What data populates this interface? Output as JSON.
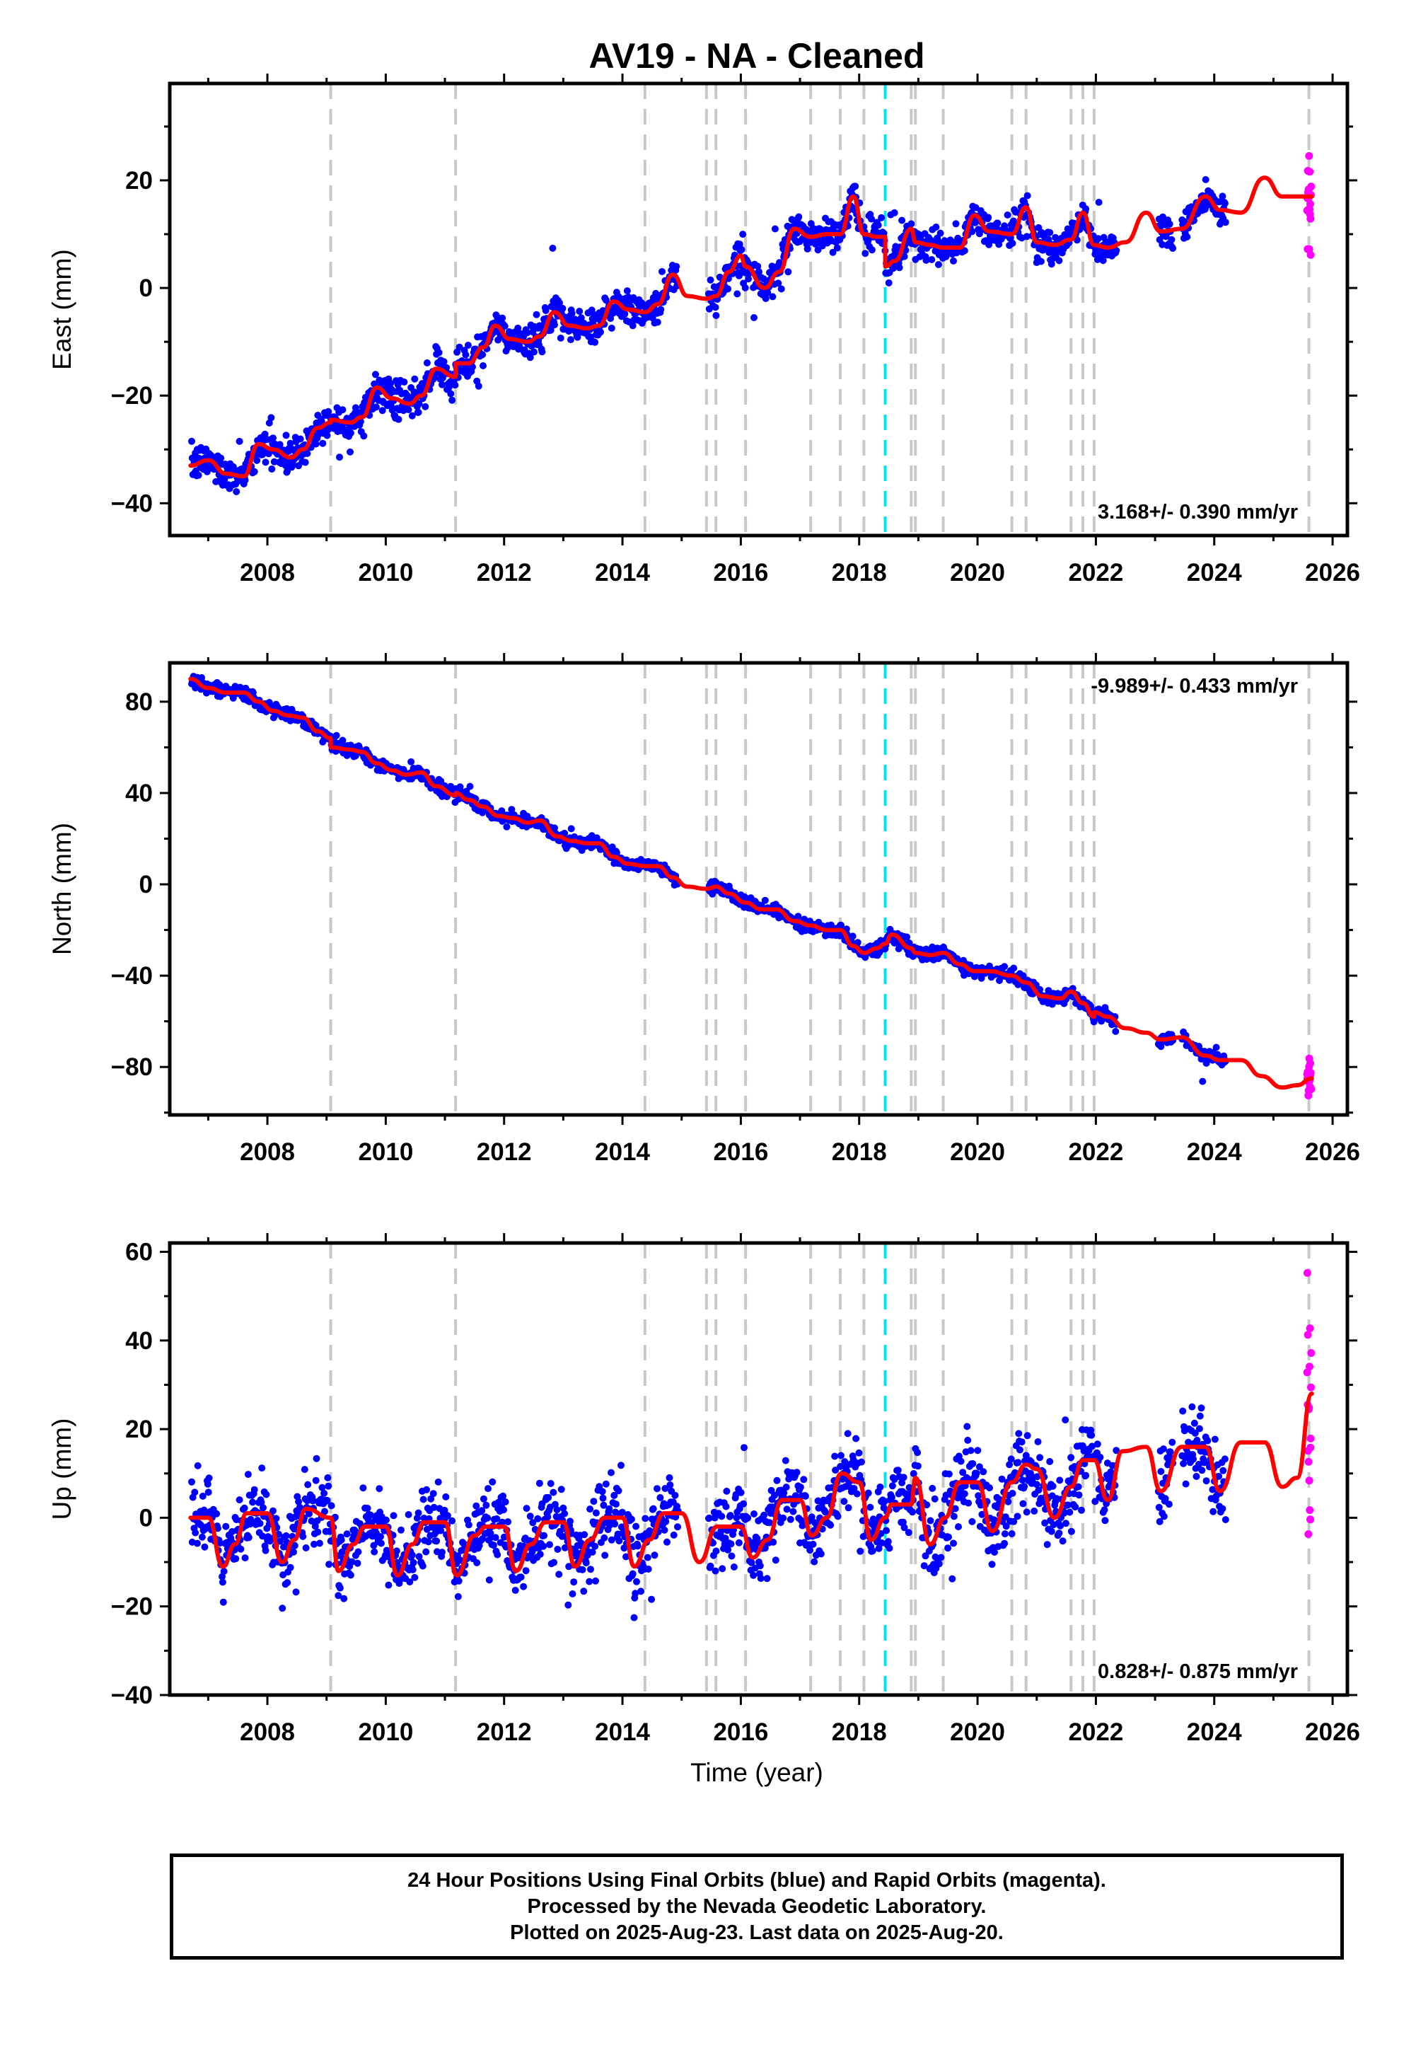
{
  "title": "AV19  - NA - Cleaned",
  "colors": {
    "final_orbits": "#0000ff",
    "rapid_orbits": "#ff00ff",
    "model": "#ff0000",
    "offsets": "#c8c8c8",
    "antenna_change": "#00e5ee"
  },
  "x_axis": {
    "label": "Time (year)",
    "range": [
      2006.35,
      2026.25
    ],
    "ticks": [
      "2008",
      "2010",
      "2012",
      "2014",
      "2016",
      "2018",
      "2020",
      "2022",
      "2024",
      "2026"
    ],
    "tick_values": [
      2008,
      2010,
      2012,
      2014,
      2016,
      2018,
      2020,
      2022,
      2024,
      2026
    ]
  },
  "offset_epochs": [
    2009.07,
    2011.18,
    2014.38,
    2015.42,
    2015.58,
    2016.08,
    2017.18,
    2017.68,
    2018.08,
    2018.88,
    2018.95,
    2019.42,
    2020.58,
    2020.82,
    2021.58,
    2021.78,
    2021.97,
    2025.6
  ],
  "antenna_epoch": 2018.44,
  "chart_data": [
    {
      "type": "scatter",
      "component": "East",
      "ylabel": "East (mm)",
      "ylim": [
        -46,
        38
      ],
      "yticks": [
        "20",
        "0",
        "−20",
        "−40"
      ],
      "ytick_values": [
        20,
        0,
        -20,
        -40
      ],
      "rate": "3.168+/- 0.390 mm/yr",
      "rate_position": "bottom-right",
      "model_series": [
        [
          2006.7,
          -33
        ],
        [
          2007.0,
          -32
        ],
        [
          2007.3,
          -34.5
        ],
        [
          2007.6,
          -35
        ],
        [
          2007.85,
          -29
        ],
        [
          2008.1,
          -30
        ],
        [
          2008.4,
          -31.5
        ],
        [
          2008.6,
          -30
        ],
        [
          2008.85,
          -26
        ],
        [
          2009.07,
          -25
        ],
        [
          2009.07,
          -24.5
        ],
        [
          2009.4,
          -25
        ],
        [
          2009.6,
          -24
        ],
        [
          2009.85,
          -18.5
        ],
        [
          2010.1,
          -20.5
        ],
        [
          2010.4,
          -21.5
        ],
        [
          2010.6,
          -20
        ],
        [
          2010.85,
          -15
        ],
        [
          2011.18,
          -16.5
        ],
        [
          2011.18,
          -14
        ],
        [
          2011.4,
          -14
        ],
        [
          2011.65,
          -11
        ],
        [
          2011.85,
          -7
        ],
        [
          2012.1,
          -9.5
        ],
        [
          2012.4,
          -10
        ],
        [
          2012.6,
          -9
        ],
        [
          2012.85,
          -4.5
        ],
        [
          2013.1,
          -7
        ],
        [
          2013.4,
          -7.5
        ],
        [
          2013.6,
          -7
        ],
        [
          2013.85,
          -2.5
        ],
        [
          2014.1,
          -4
        ],
        [
          2014.38,
          -4.5
        ],
        [
          2014.6,
          -3
        ],
        [
          2014.85,
          2.5
        ],
        [
          2015.1,
          -1.5
        ],
        [
          2015.42,
          -2
        ],
        [
          2015.58,
          -1.5
        ],
        [
          2015.8,
          3
        ],
        [
          2016.0,
          6
        ],
        [
          2016.08,
          4
        ],
        [
          2016.4,
          0
        ],
        [
          2016.65,
          3
        ],
        [
          2016.9,
          11
        ],
        [
          2017.18,
          9.5
        ],
        [
          2017.45,
          10
        ],
        [
          2017.68,
          10
        ],
        [
          2017.9,
          17
        ],
        [
          2018.08,
          10
        ],
        [
          2018.3,
          9.5
        ],
        [
          2018.44,
          9.5
        ],
        [
          2018.44,
          4
        ],
        [
          2018.6,
          5
        ],
        [
          2018.88,
          11
        ],
        [
          2018.95,
          8.5
        ],
        [
          2019.2,
          8
        ],
        [
          2019.42,
          7.5
        ],
        [
          2019.7,
          7.5
        ],
        [
          2019.95,
          13.5
        ],
        [
          2020.2,
          10.5
        ],
        [
          2020.58,
          10
        ],
        [
          2020.82,
          15
        ],
        [
          2021.0,
          8.5
        ],
        [
          2021.3,
          8
        ],
        [
          2021.58,
          9
        ],
        [
          2021.78,
          14
        ],
        [
          2021.97,
          8
        ],
        [
          2022.2,
          7.5
        ],
        [
          2022.5,
          8.5
        ],
        [
          2022.85,
          14
        ],
        [
          2023.1,
          10.5
        ],
        [
          2023.45,
          11
        ],
        [
          2023.85,
          17
        ],
        [
          2024.1,
          14.5
        ],
        [
          2024.45,
          14
        ],
        [
          2024.85,
          20.5
        ],
        [
          2025.15,
          17
        ],
        [
          2025.6,
          17
        ],
        [
          2025.65,
          17
        ]
      ]
    },
    {
      "type": "scatter",
      "component": "North",
      "ylabel": "North (mm)",
      "ylim": [
        -101,
        97
      ],
      "yticks": [
        "80",
        "40",
        "0",
        "−40",
        "−80"
      ],
      "ytick_values": [
        80,
        40,
        0,
        -40,
        -80
      ],
      "rate": "-9.989+/- 0.433 mm/yr",
      "rate_position": "top-right",
      "model_series": [
        [
          2006.7,
          90
        ],
        [
          2007.0,
          86
        ],
        [
          2007.3,
          84
        ],
        [
          2007.6,
          84
        ],
        [
          2007.85,
          80
        ],
        [
          2008.1,
          76
        ],
        [
          2008.35,
          74
        ],
        [
          2008.6,
          73
        ],
        [
          2008.85,
          67
        ],
        [
          2009.07,
          64
        ],
        [
          2009.07,
          60
        ],
        [
          2009.4,
          59
        ],
        [
          2009.6,
          58
        ],
        [
          2009.85,
          53
        ],
        [
          2010.1,
          50
        ],
        [
          2010.35,
          48
        ],
        [
          2010.6,
          49
        ],
        [
          2010.85,
          43
        ],
        [
          2011.18,
          39
        ],
        [
          2011.18,
          40
        ],
        [
          2011.4,
          37
        ],
        [
          2011.65,
          34
        ],
        [
          2011.9,
          30
        ],
        [
          2012.15,
          29
        ],
        [
          2012.4,
          27
        ],
        [
          2012.6,
          28
        ],
        [
          2012.9,
          21
        ],
        [
          2013.15,
          19
        ],
        [
          2013.4,
          18
        ],
        [
          2013.6,
          18
        ],
        [
          2013.85,
          12
        ],
        [
          2014.1,
          9
        ],
        [
          2014.38,
          8
        ],
        [
          2014.6,
          8
        ],
        [
          2014.85,
          3
        ],
        [
          2015.1,
          -1
        ],
        [
          2015.42,
          -2
        ],
        [
          2015.58,
          -1
        ],
        [
          2015.8,
          -4
        ],
        [
          2016.08,
          -8
        ],
        [
          2016.35,
          -11
        ],
        [
          2016.6,
          -11
        ],
        [
          2016.9,
          -16
        ],
        [
          2017.18,
          -18
        ],
        [
          2017.45,
          -20
        ],
        [
          2017.68,
          -20
        ],
        [
          2017.9,
          -27
        ],
        [
          2018.08,
          -30
        ],
        [
          2018.3,
          -28
        ],
        [
          2018.44,
          -26
        ],
        [
          2018.55,
          -22
        ],
        [
          2018.88,
          -28
        ],
        [
          2018.95,
          -30
        ],
        [
          2019.2,
          -31
        ],
        [
          2019.42,
          -30
        ],
        [
          2019.7,
          -35
        ],
        [
          2019.95,
          -38
        ],
        [
          2020.2,
          -38
        ],
        [
          2020.58,
          -40
        ],
        [
          2020.82,
          -43
        ],
        [
          2021.1,
          -49
        ],
        [
          2021.4,
          -50
        ],
        [
          2021.58,
          -47
        ],
        [
          2021.78,
          -52
        ],
        [
          2021.97,
          -58
        ],
        [
          2021.97,
          -56
        ],
        [
          2022.2,
          -58
        ],
        [
          2022.5,
          -63
        ],
        [
          2022.85,
          -65
        ],
        [
          2023.1,
          -68
        ],
        [
          2023.45,
          -67
        ],
        [
          2023.85,
          -75
        ],
        [
          2024.1,
          -77
        ],
        [
          2024.45,
          -77
        ],
        [
          2024.8,
          -84
        ],
        [
          2025.15,
          -89
        ],
        [
          2025.4,
          -88
        ],
        [
          2025.65,
          -85
        ]
      ]
    },
    {
      "type": "scatter",
      "component": "Up",
      "ylabel": "Up (mm)",
      "ylim": [
        -40,
        62
      ],
      "yticks": [
        "60",
        "40",
        "20",
        "0",
        "−20",
        "−40"
      ],
      "ytick_values": [
        60,
        40,
        20,
        0,
        -20,
        -40
      ],
      "rate": "0.828+/- 0.875 mm/yr",
      "rate_position": "bottom-right",
      "model_series": [
        [
          2006.7,
          0
        ],
        [
          2007.0,
          0
        ],
        [
          2007.25,
          -11
        ],
        [
          2007.45,
          -6
        ],
        [
          2007.65,
          1
        ],
        [
          2008.0,
          1
        ],
        [
          2008.25,
          -10
        ],
        [
          2008.45,
          -5
        ],
        [
          2008.65,
          2
        ],
        [
          2009.07,
          0
        ],
        [
          2009.2,
          -12
        ],
        [
          2009.45,
          -6
        ],
        [
          2009.65,
          -2
        ],
        [
          2010.0,
          -2
        ],
        [
          2010.2,
          -13
        ],
        [
          2010.45,
          -6
        ],
        [
          2010.65,
          -1
        ],
        [
          2011.0,
          -1
        ],
        [
          2011.2,
          -13
        ],
        [
          2011.5,
          -4
        ],
        [
          2011.7,
          -2
        ],
        [
          2012.0,
          -2
        ],
        [
          2012.2,
          -12
        ],
        [
          2012.45,
          -6
        ],
        [
          2012.7,
          -1
        ],
        [
          2013.0,
          -1
        ],
        [
          2013.2,
          -11
        ],
        [
          2013.45,
          -5
        ],
        [
          2013.7,
          0
        ],
        [
          2014.0,
          0
        ],
        [
          2014.2,
          -11
        ],
        [
          2014.45,
          -5
        ],
        [
          2014.7,
          1
        ],
        [
          2015.0,
          1
        ],
        [
          2015.3,
          -10
        ],
        [
          2015.6,
          -2
        ],
        [
          2016.0,
          -2
        ],
        [
          2016.2,
          -9
        ],
        [
          2016.45,
          -5
        ],
        [
          2016.7,
          4
        ],
        [
          2017.0,
          4
        ],
        [
          2017.2,
          -4
        ],
        [
          2017.45,
          0
        ],
        [
          2017.7,
          10
        ],
        [
          2018.0,
          8
        ],
        [
          2018.2,
          -5
        ],
        [
          2018.44,
          0
        ],
        [
          2018.55,
          3
        ],
        [
          2018.88,
          3
        ],
        [
          2018.95,
          9
        ],
        [
          2019.2,
          -6
        ],
        [
          2019.45,
          0
        ],
        [
          2019.7,
          8
        ],
        [
          2020.0,
          8
        ],
        [
          2020.25,
          -3
        ],
        [
          2020.58,
          8
        ],
        [
          2020.82,
          12
        ],
        [
          2021.0,
          11
        ],
        [
          2021.3,
          0
        ],
        [
          2021.58,
          7
        ],
        [
          2021.78,
          13
        ],
        [
          2021.97,
          13
        ],
        [
          2022.2,
          4
        ],
        [
          2022.45,
          15
        ],
        [
          2022.85,
          16
        ],
        [
          2023.1,
          6
        ],
        [
          2023.45,
          16
        ],
        [
          2023.85,
          16
        ],
        [
          2024.1,
          6
        ],
        [
          2024.45,
          17
        ],
        [
          2024.85,
          17
        ],
        [
          2025.15,
          7
        ],
        [
          2025.4,
          9
        ],
        [
          2025.65,
          28
        ]
      ]
    }
  ],
  "caption": {
    "line1": "24 Hour Positions Using Final Orbits (blue) and Rapid Orbits (magenta).",
    "line2": "Processed by the Nevada Geodetic Laboratory.",
    "line3": "Plotted on 2025-Aug-23. Last data on 2025-Aug-20."
  }
}
